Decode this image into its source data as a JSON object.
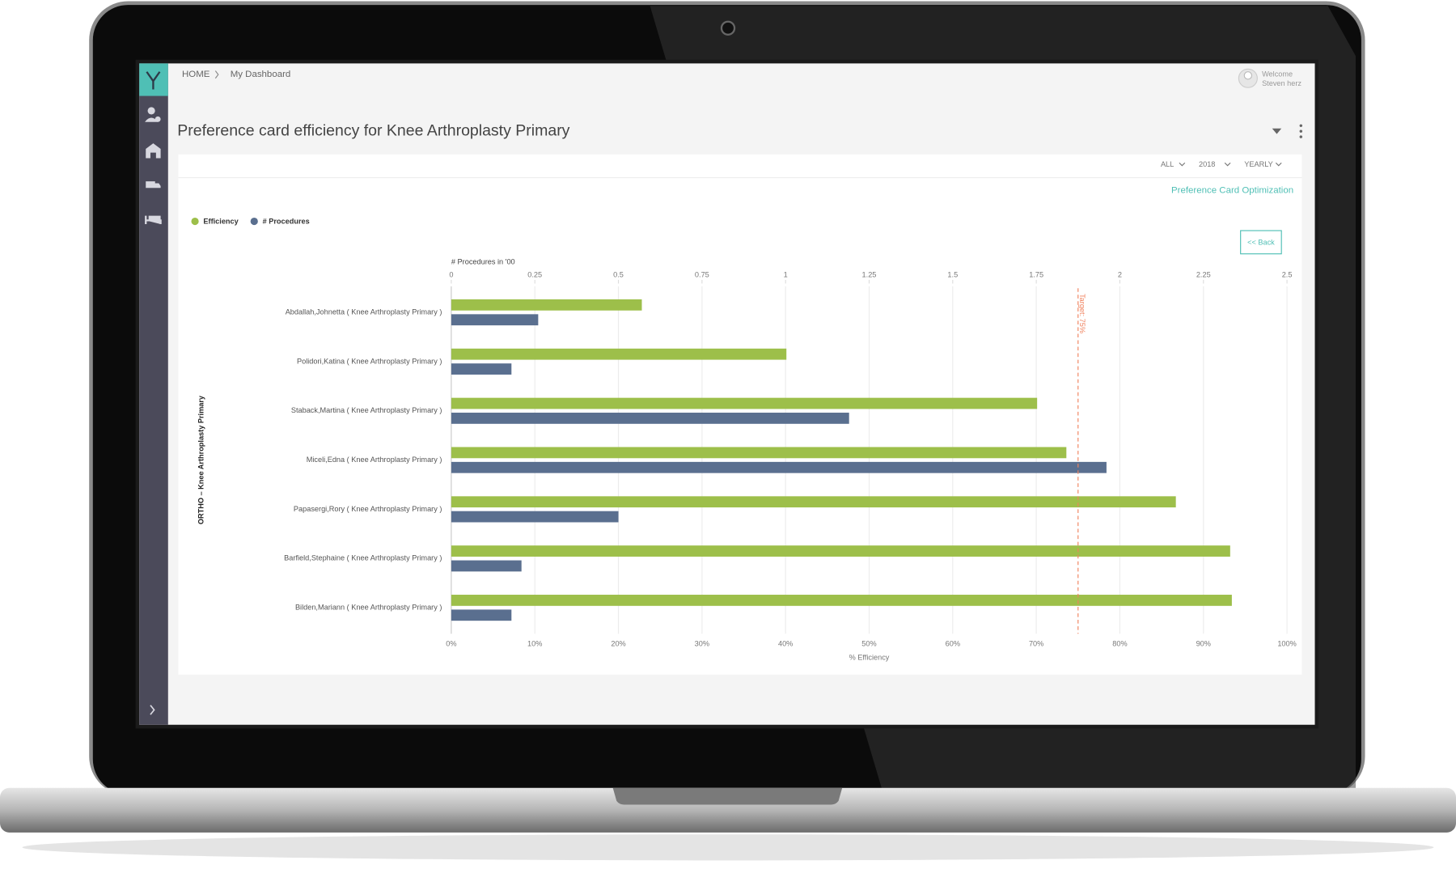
{
  "header": {
    "breadcrumb": [
      "HOME",
      "My Dashboard"
    ],
    "welcome": "Welcome",
    "user": "Steven herz"
  },
  "page_title": "Preference card efficiency for Knee Arthroplasty Primary",
  "filters": [
    "ALL",
    "2018",
    "YEARLY"
  ],
  "link": "Preference Card Optimization",
  "back_button": "<< Back",
  "chart_data": {
    "type": "bar",
    "categories": [
      "Abdallah,Johnetta ( Knee Arthroplasty Primary )",
      "Polidori,Katina ( Knee Arthroplasty Primary )",
      "Staback,Martina ( Knee Arthroplasty Primary )",
      "Miceli,Edna ( Knee Arthroplasty Primary )",
      "Papasergi,Rory ( Knee Arthroplasty Primary )",
      "Barfield,Stephaine ( Knee Arthroplasty Primary )",
      "Bilden,Mariann ( Knee Arthroplasty Primary )"
    ],
    "series": [
      {
        "name": "Efficiency",
        "color": "#9dbf4a",
        "values": [
          22.8,
          40.1,
          70.1,
          73.6,
          86.7,
          93.2,
          93.4
        ]
      },
      {
        "name": "# Procedures",
        "color": "#5a6f8f",
        "axis": "x2",
        "values": [
          0.26,
          0.18,
          1.19,
          1.96,
          0.5,
          0.21,
          0.18
        ]
      }
    ],
    "xlim": [
      0,
      100
    ],
    "xticks": [
      {
        "value": 0,
        "label": "0%"
      },
      {
        "value": 10,
        "label": "10%"
      },
      {
        "value": 20,
        "label": "20%"
      },
      {
        "value": 30,
        "label": "30%"
      },
      {
        "value": 40,
        "label": "40%"
      },
      {
        "value": 50,
        "label": "50%"
      },
      {
        "value": 60,
        "label": "60%"
      },
      {
        "value": 70,
        "label": "70%"
      },
      {
        "value": 80,
        "label": "80%"
      },
      {
        "value": 90,
        "label": "90%"
      },
      {
        "value": 100,
        "label": "100%"
      }
    ],
    "x2lim": [
      0,
      2.5
    ],
    "x2ticks": [
      0,
      0.25,
      0.5,
      0.75,
      1,
      1.25,
      1.5,
      1.75,
      2,
      2.25,
      2.5
    ],
    "xlabel": "% Efficiency",
    "x2label": "# Procedures in '00",
    "ylabel": "ORTHO – Knee Arthroplasty Primary",
    "target": {
      "value": 75,
      "label": "Target: 75%"
    },
    "grid": true,
    "legend": "top-left"
  }
}
